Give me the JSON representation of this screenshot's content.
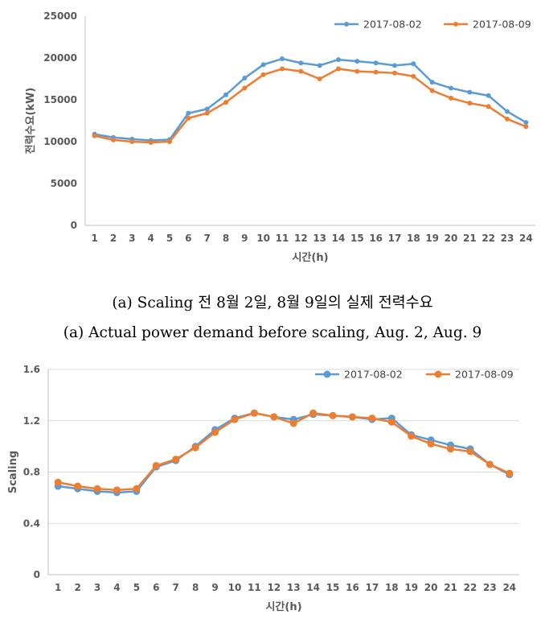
{
  "chart_data": [
    {
      "type": "line",
      "xlabel": "시간(h)",
      "ylabel": "전력수요(kW)",
      "ylim": [
        0,
        25000
      ],
      "yticks": [
        "0",
        "5000",
        "10000",
        "15000",
        "20000",
        "25000"
      ],
      "categories": [
        "1",
        "2",
        "3",
        "4",
        "5",
        "6",
        "7",
        "8",
        "9",
        "10",
        "11",
        "12",
        "13",
        "14",
        "15",
        "16",
        "17",
        "18",
        "19",
        "20",
        "21",
        "22",
        "23",
        "24"
      ],
      "grid": false,
      "legend_position": "top-right",
      "series": [
        {
          "name": "2017-08-02",
          "color": "#5b9bd5",
          "values": [
            10900,
            10500,
            10300,
            10150,
            10250,
            13400,
            13900,
            15600,
            17600,
            19200,
            19900,
            19400,
            19100,
            19800,
            19600,
            19400,
            19100,
            19300,
            17100,
            16400,
            15900,
            15500,
            13600,
            12300
          ]
        },
        {
          "name": "2017-08-09",
          "color": "#ed7d31",
          "values": [
            10700,
            10200,
            10000,
            9900,
            10000,
            12800,
            13400,
            14700,
            16400,
            18000,
            18700,
            18400,
            17500,
            18700,
            18400,
            18300,
            18200,
            17800,
            16100,
            15200,
            14600,
            14200,
            12700,
            11800
          ]
        }
      ]
    },
    {
      "type": "line",
      "xlabel": "시간(h)",
      "ylabel": "Scaling",
      "ylim": [
        0,
        1.6
      ],
      "yticks": [
        "0",
        "0.4",
        "0.8",
        "1.2",
        "1.6"
      ],
      "categories": [
        "1",
        "2",
        "3",
        "4",
        "5",
        "6",
        "7",
        "8",
        "9",
        "10",
        "11",
        "12",
        "13",
        "14",
        "15",
        "16",
        "17",
        "18",
        "19",
        "20",
        "21",
        "22",
        "23",
        "24"
      ],
      "grid": true,
      "legend_position": "top-right",
      "series": [
        {
          "name": "2017-08-02",
          "color": "#5b9bd5",
          "values": [
            0.69,
            0.67,
            0.65,
            0.64,
            0.65,
            0.84,
            0.89,
            1.0,
            1.13,
            1.22,
            1.26,
            1.23,
            1.21,
            1.25,
            1.24,
            1.23,
            1.21,
            1.22,
            1.09,
            1.05,
            1.01,
            0.98,
            0.86,
            0.78
          ]
        },
        {
          "name": "2017-08-09",
          "color": "#ed7d31",
          "values": [
            0.72,
            0.69,
            0.67,
            0.66,
            0.67,
            0.85,
            0.9,
            0.99,
            1.11,
            1.21,
            1.26,
            1.23,
            1.18,
            1.26,
            1.24,
            1.23,
            1.22,
            1.19,
            1.08,
            1.02,
            0.98,
            0.96,
            0.86,
            0.79
          ]
        }
      ]
    }
  ],
  "captions": {
    "korean": "(a) Scaling 전 8월 2일, 8월 9일의 실제 전력수요",
    "english": "(a) Actual power demand before scaling, Aug. 2, Aug. 9"
  }
}
